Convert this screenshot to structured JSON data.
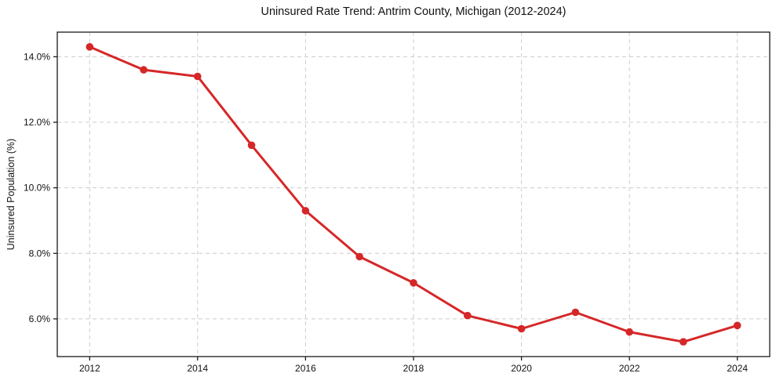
{
  "chart_data": {
    "type": "line",
    "title": "Uninsured Rate Trend: Antrim County, Michigan (2012-2024)",
    "xlabel": "",
    "ylabel": "Uninsured Population (%)",
    "x": [
      2012,
      2013,
      2014,
      2015,
      2016,
      2017,
      2018,
      2019,
      2020,
      2021,
      2022,
      2023,
      2024
    ],
    "values": [
      14.3,
      13.6,
      13.4,
      11.3,
      9.3,
      7.9,
      7.1,
      6.1,
      5.7,
      6.2,
      5.6,
      5.3,
      5.8
    ],
    "xlim": [
      2011.4,
      2024.6
    ],
    "ylim": [
      4.85,
      14.75
    ],
    "xticks": [
      2012,
      2014,
      2016,
      2018,
      2020,
      2022,
      2024
    ],
    "xtick_labels": [
      "2012",
      "2014",
      "2016",
      "2018",
      "2020",
      "2022",
      "2024"
    ],
    "yticks": [
      6.0,
      8.0,
      10.0,
      12.0,
      14.0
    ],
    "ytick_labels": [
      "6.0%",
      "8.0%",
      "10.0%",
      "12.0%",
      "14.0%"
    ],
    "grid": true,
    "grid_style": "dashed",
    "legend": false,
    "line_color": "#d62728",
    "marker": "circle",
    "grid_color": "#cccccc",
    "axis_color": "#1a1a1a"
  }
}
